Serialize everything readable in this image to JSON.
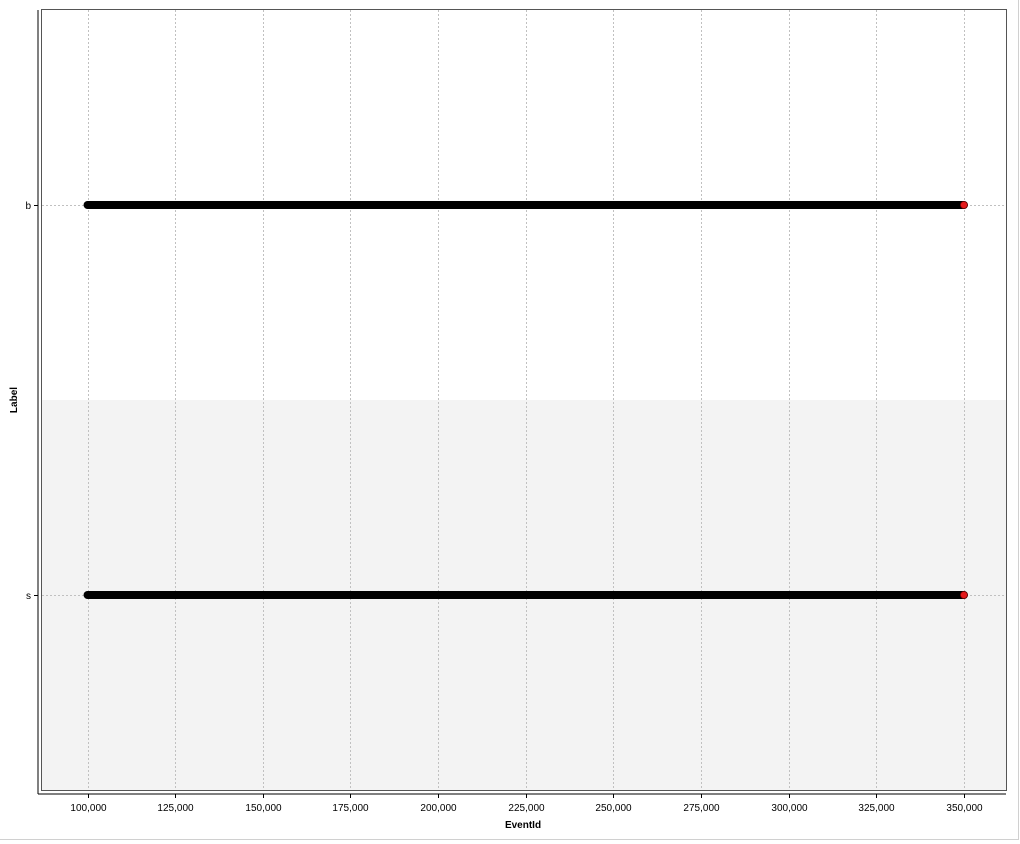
{
  "chart_data": {
    "type": "scatter",
    "title": "",
    "xlabel": "EventId",
    "ylabel": "Label",
    "xlim": [
      87000,
      362000
    ],
    "x_ticks": [
      100000,
      125000,
      150000,
      175000,
      200000,
      225000,
      250000,
      275000,
      300000,
      325000,
      350000
    ],
    "x_tick_labels": [
      "100,000",
      "125,000",
      "150,000",
      "175,000",
      "200,000",
      "225,000",
      "250,000",
      "275,000",
      "300,000",
      "325,000",
      "350,000"
    ],
    "categories": [
      "b",
      "s"
    ],
    "grid": true,
    "legend": "none",
    "series": [
      {
        "category": "b",
        "x_min": 100000,
        "x_max": 349999,
        "highlight_x": 350000
      },
      {
        "category": "s",
        "x_min": 100000,
        "x_max": 349999,
        "highlight_x": 350000
      }
    ],
    "colors": {
      "points": "#000000",
      "highlight": "#e41a1c",
      "grid": "#c0c0c0",
      "band": "#f3f3f3",
      "axis": "#000000"
    }
  }
}
